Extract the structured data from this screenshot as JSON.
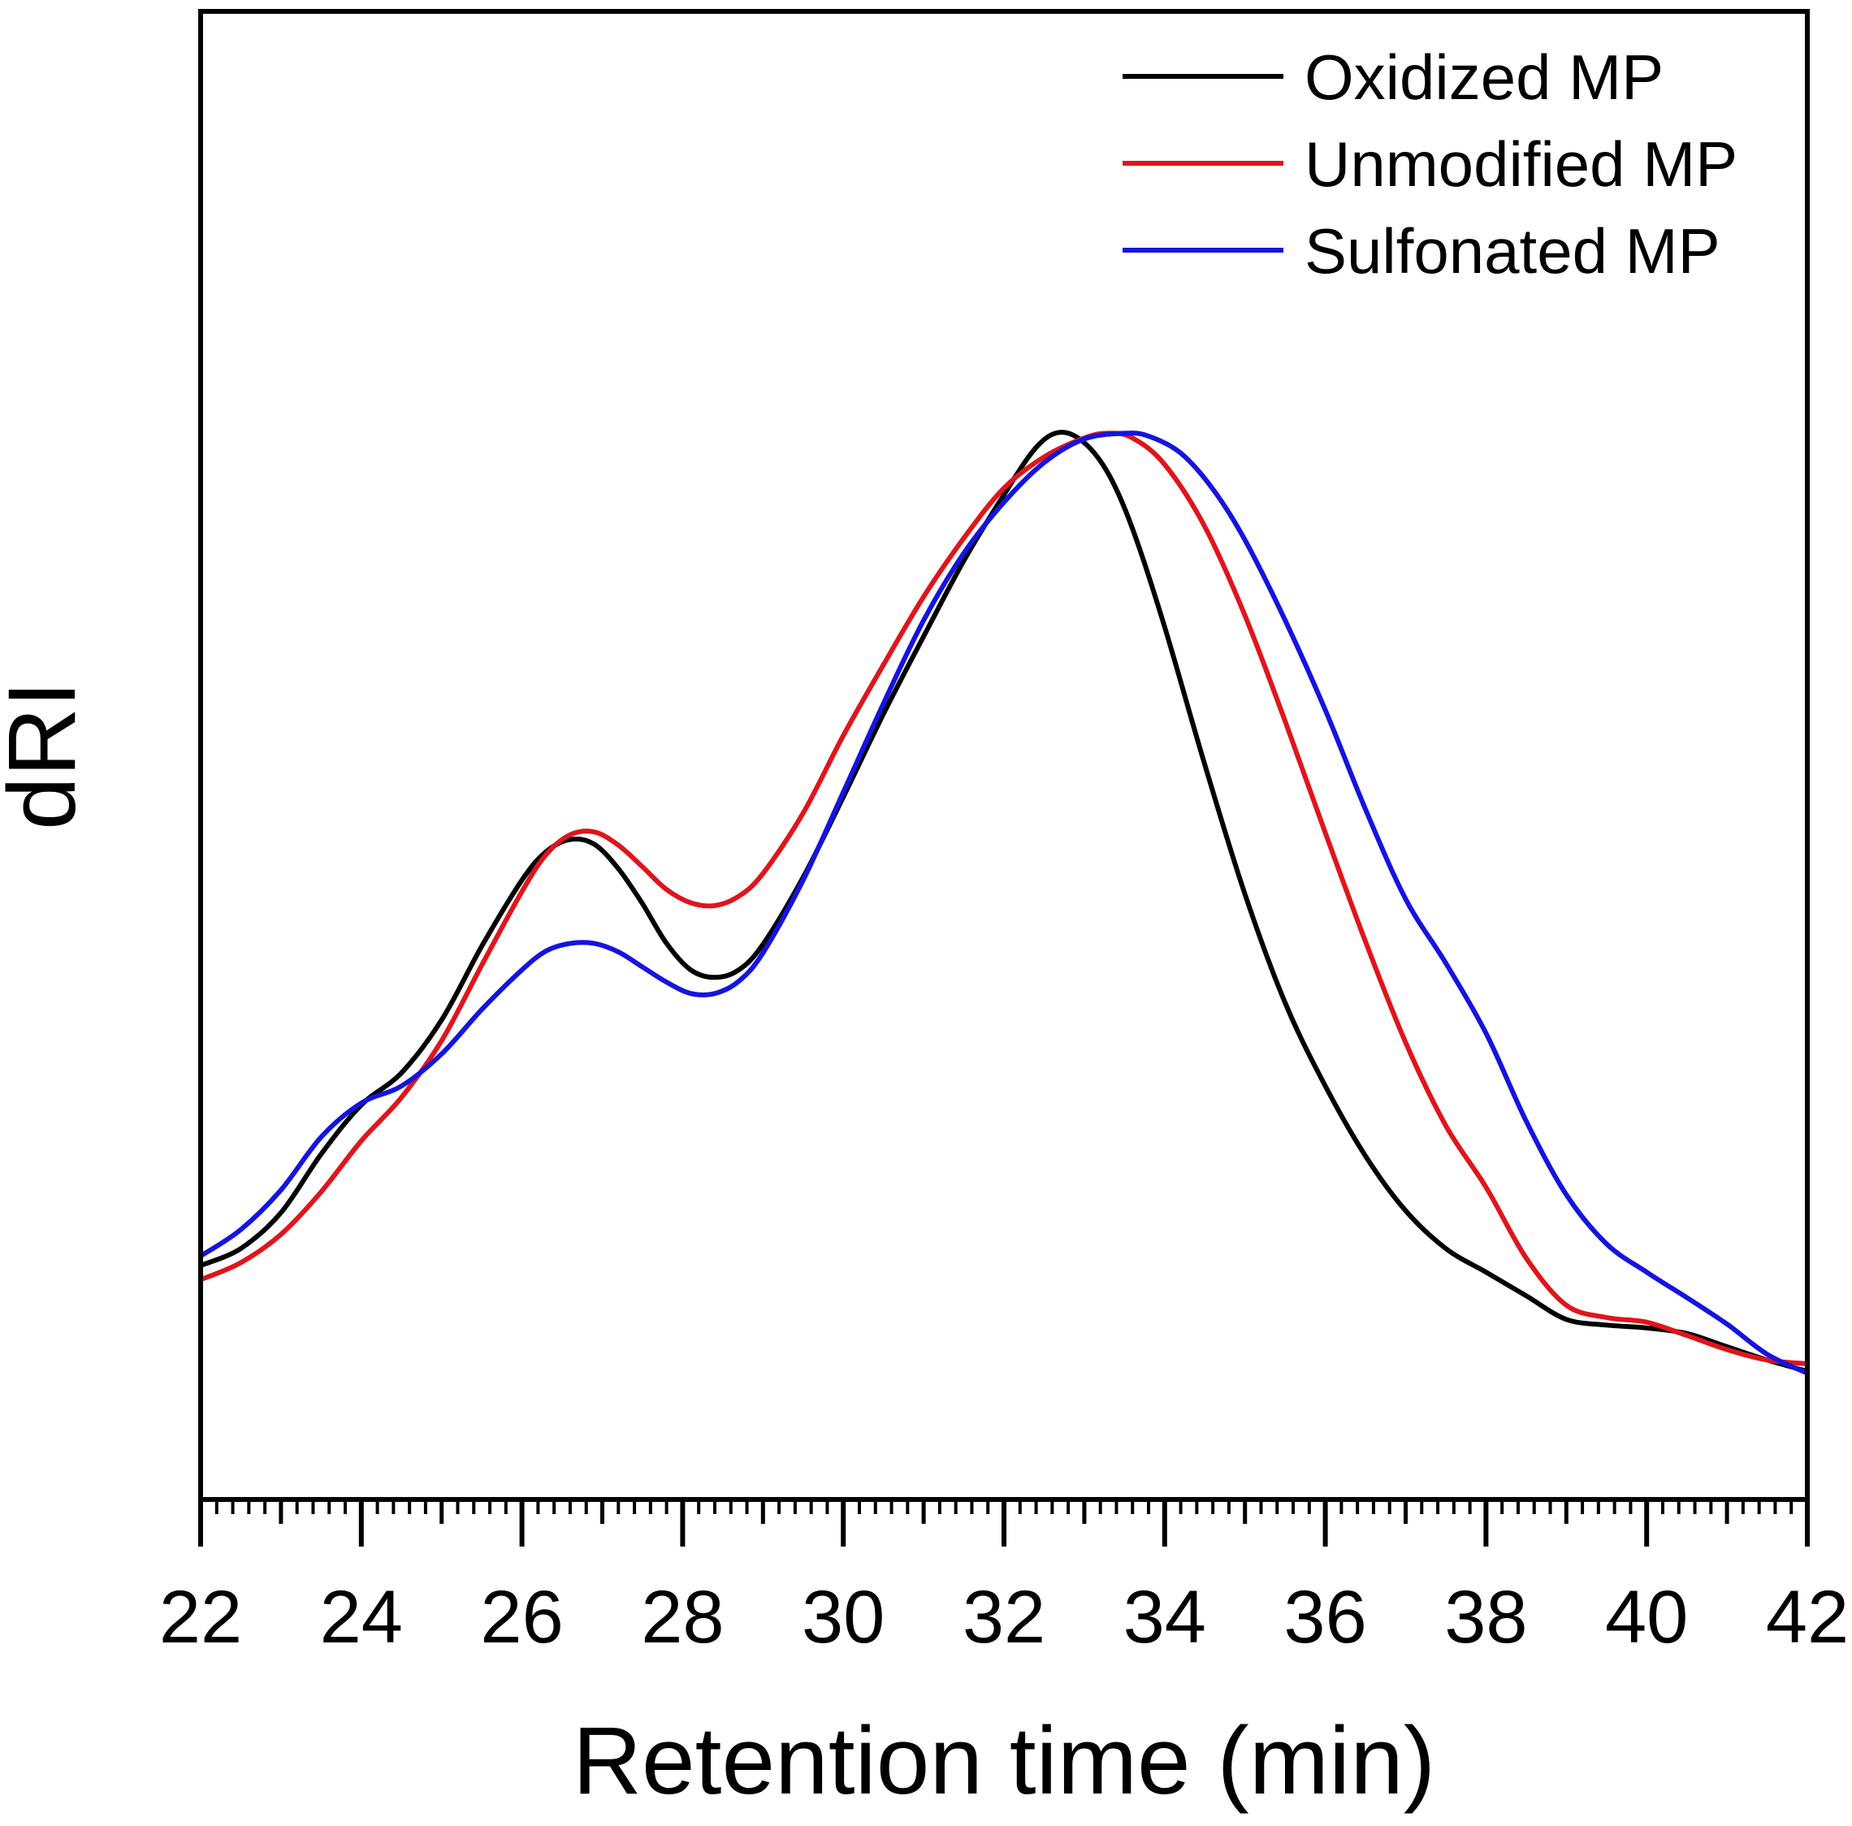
{
  "chart_data": {
    "type": "line",
    "title": "",
    "xlabel": "Retention time (min)",
    "ylabel": "dRI",
    "xlim": [
      22,
      42
    ],
    "ylim": [
      0,
      1
    ],
    "xticks": [
      "22",
      "24",
      "26",
      "28",
      "30",
      "32",
      "34",
      "36",
      "38",
      "40",
      "42"
    ],
    "y_ticks_shown": false,
    "legend_position": "top-right",
    "series": [
      {
        "name": "Oxidized MP",
        "color": "#000000",
        "points": [
          [
            22.0,
            0.092
          ],
          [
            22.5,
            0.11
          ],
          [
            23.0,
            0.148
          ],
          [
            23.5,
            0.21
          ],
          [
            24.0,
            0.262
          ],
          [
            24.5,
            0.296
          ],
          [
            25.0,
            0.352
          ],
          [
            25.5,
            0.43
          ],
          [
            26.0,
            0.5
          ],
          [
            26.3,
            0.53
          ],
          [
            26.6,
            0.543
          ],
          [
            26.9,
            0.538
          ],
          [
            27.2,
            0.512
          ],
          [
            27.5,
            0.475
          ],
          [
            27.8,
            0.433
          ],
          [
            28.1,
            0.405
          ],
          [
            28.4,
            0.397
          ],
          [
            28.7,
            0.405
          ],
          [
            29.0,
            0.432
          ],
          [
            29.5,
            0.503
          ],
          [
            30.0,
            0.588
          ],
          [
            30.5,
            0.676
          ],
          [
            31.0,
            0.758
          ],
          [
            31.5,
            0.838
          ],
          [
            32.0,
            0.908
          ],
          [
            32.4,
            0.958
          ],
          [
            32.7,
            0.974
          ],
          [
            33.0,
            0.963
          ],
          [
            33.3,
            0.93
          ],
          [
            33.6,
            0.872
          ],
          [
            34.0,
            0.768
          ],
          [
            34.5,
            0.622
          ],
          [
            35.0,
            0.485
          ],
          [
            35.5,
            0.37
          ],
          [
            36.0,
            0.282
          ],
          [
            36.5,
            0.208
          ],
          [
            37.0,
            0.15
          ],
          [
            37.5,
            0.11
          ],
          [
            38.0,
            0.085
          ],
          [
            38.5,
            0.06
          ],
          [
            39.0,
            0.035
          ],
          [
            39.5,
            0.029
          ],
          [
            40.0,
            0.026
          ],
          [
            40.5,
            0.02
          ],
          [
            41.0,
            0.006
          ],
          [
            41.5,
            -0.008
          ],
          [
            42.0,
            -0.02
          ]
        ]
      },
      {
        "name": "Unmodified MP",
        "color": "#e0151b",
        "points": [
          [
            22.0,
            0.077
          ],
          [
            22.5,
            0.095
          ],
          [
            23.0,
            0.125
          ],
          [
            23.5,
            0.17
          ],
          [
            24.0,
            0.224
          ],
          [
            24.5,
            0.27
          ],
          [
            25.0,
            0.33
          ],
          [
            25.5,
            0.41
          ],
          [
            26.0,
            0.488
          ],
          [
            26.3,
            0.527
          ],
          [
            26.6,
            0.548
          ],
          [
            26.9,
            0.551
          ],
          [
            27.2,
            0.537
          ],
          [
            27.5,
            0.514
          ],
          [
            27.8,
            0.49
          ],
          [
            28.1,
            0.476
          ],
          [
            28.4,
            0.473
          ],
          [
            28.7,
            0.483
          ],
          [
            29.0,
            0.507
          ],
          [
            29.5,
            0.571
          ],
          [
            30.0,
            0.653
          ],
          [
            30.5,
            0.728
          ],
          [
            31.0,
            0.8
          ],
          [
            31.5,
            0.862
          ],
          [
            32.0,
            0.915
          ],
          [
            32.5,
            0.948
          ],
          [
            33.0,
            0.968
          ],
          [
            33.3,
            0.973
          ],
          [
            33.6,
            0.968
          ],
          [
            34.0,
            0.94
          ],
          [
            34.5,
            0.874
          ],
          [
            35.0,
            0.78
          ],
          [
            35.5,
            0.668
          ],
          [
            36.0,
            0.55
          ],
          [
            36.5,
            0.435
          ],
          [
            37.0,
            0.328
          ],
          [
            37.5,
            0.24
          ],
          [
            38.0,
            0.175
          ],
          [
            38.5,
            0.1
          ],
          [
            39.0,
            0.05
          ],
          [
            39.5,
            0.037
          ],
          [
            40.0,
            0.032
          ],
          [
            40.5,
            0.018
          ],
          [
            41.0,
            0.003
          ],
          [
            41.5,
            -0.008
          ],
          [
            42.0,
            -0.012
          ]
        ]
      },
      {
        "name": "Sulfonated MP",
        "color": "#1414e0",
        "points": [
          [
            22.0,
            0.102
          ],
          [
            22.5,
            0.13
          ],
          [
            23.0,
            0.172
          ],
          [
            23.5,
            0.228
          ],
          [
            24.0,
            0.264
          ],
          [
            24.5,
            0.282
          ],
          [
            25.0,
            0.316
          ],
          [
            25.5,
            0.363
          ],
          [
            26.0,
            0.405
          ],
          [
            26.3,
            0.425
          ],
          [
            26.6,
            0.433
          ],
          [
            26.9,
            0.433
          ],
          [
            27.2,
            0.424
          ],
          [
            27.5,
            0.408
          ],
          [
            27.8,
            0.392
          ],
          [
            28.1,
            0.38
          ],
          [
            28.4,
            0.38
          ],
          [
            28.7,
            0.393
          ],
          [
            29.0,
            0.423
          ],
          [
            29.5,
            0.5
          ],
          [
            30.0,
            0.593
          ],
          [
            30.5,
            0.687
          ],
          [
            31.0,
            0.775
          ],
          [
            31.5,
            0.846
          ],
          [
            32.0,
            0.9
          ],
          [
            32.5,
            0.942
          ],
          [
            33.0,
            0.967
          ],
          [
            33.5,
            0.973
          ],
          [
            33.8,
            0.97
          ],
          [
            34.2,
            0.952
          ],
          [
            34.6,
            0.914
          ],
          [
            35.0,
            0.86
          ],
          [
            35.5,
            0.775
          ],
          [
            36.0,
            0.68
          ],
          [
            36.5,
            0.575
          ],
          [
            37.0,
            0.48
          ],
          [
            37.5,
            0.412
          ],
          [
            38.0,
            0.338
          ],
          [
            38.5,
            0.245
          ],
          [
            39.0,
            0.167
          ],
          [
            39.5,
            0.115
          ],
          [
            40.0,
            0.085
          ],
          [
            40.5,
            0.058
          ],
          [
            41.0,
            0.03
          ],
          [
            41.5,
            -0.002
          ],
          [
            42.0,
            -0.022
          ]
        ]
      }
    ]
  }
}
